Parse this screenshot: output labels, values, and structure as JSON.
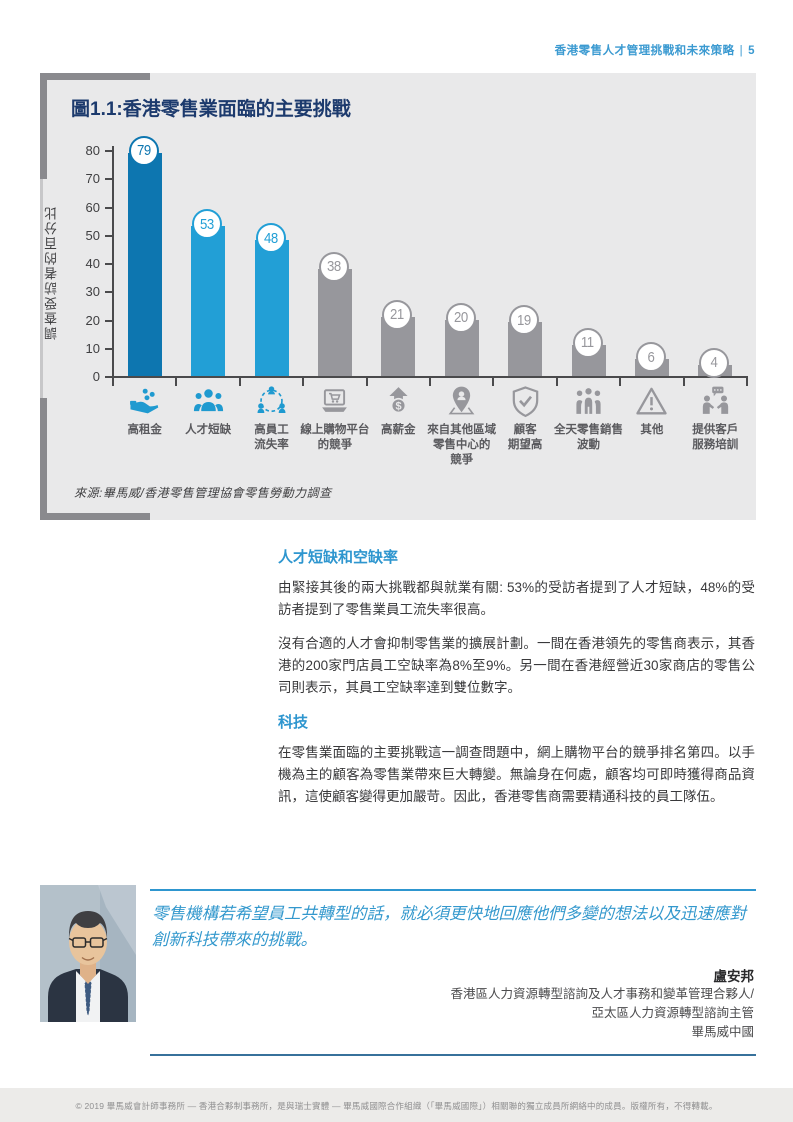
{
  "header": {
    "title": "香港零售人才管理挑戰和未來策略",
    "divider": "|",
    "page_number": "5"
  },
  "chart_data": {
    "type": "bar",
    "title": "圖1.1:香港零售業面臨的主要挑戰",
    "ylabel": "調查受訪者的百分比",
    "xlabel": "",
    "ylim": [
      0,
      80
    ],
    "yticks": [
      0,
      10,
      20,
      30,
      40,
      50,
      60,
      70,
      80
    ],
    "grid": "off",
    "legend": "none",
    "source": "來源:畢馬威/香港零售管理協會零售勞動力調查",
    "categories": [
      "高租金",
      "人才短缺",
      "高員工流失率",
      "線上購物平台的競爭",
      "高薪金",
      "來自其他區域零售中心的競爭",
      "顧客期望高",
      "全天零售銷售波動",
      "其他",
      "提供客戶服務培訓"
    ],
    "values": [
      79,
      53,
      48,
      38,
      21,
      20,
      19,
      11,
      6,
      4
    ],
    "bars": [
      {
        "label_lines": [
          "高租金"
        ],
        "value": 79,
        "color": "#0d76b0",
        "icon": "coins-hand-icon",
        "icon_color": "#1f9ad0"
      },
      {
        "label_lines": [
          "人才短缺"
        ],
        "value": 53,
        "color": "#229fd6",
        "icon": "people-icon",
        "icon_color": "#1f9ad0"
      },
      {
        "label_lines": [
          "高員工",
          "流失率"
        ],
        "value": 48,
        "color": "#229fd6",
        "icon": "turnover-icon",
        "icon_color": "#1f9ad0"
      },
      {
        "label_lines": [
          "線上購物平台",
          "的競爭"
        ],
        "value": 38,
        "color": "#97979c",
        "icon": "laptop-cart-icon",
        "icon_color": "#97979c"
      },
      {
        "label_lines": [
          "高薪金"
        ],
        "value": 21,
        "color": "#97979c",
        "icon": "salary-up-icon",
        "icon_color": "#97979c"
      },
      {
        "label_lines": [
          "來自其他區域",
          "零售中心的",
          "競爭"
        ],
        "value": 20,
        "color": "#97979c",
        "icon": "map-pin-icon",
        "icon_color": "#97979c"
      },
      {
        "label_lines": [
          "顧客",
          "期望高"
        ],
        "value": 19,
        "color": "#97979c",
        "icon": "shield-check-icon",
        "icon_color": "#97979c"
      },
      {
        "label_lines": [
          "全天零售銷售",
          "波動"
        ],
        "value": 11,
        "color": "#97979c",
        "icon": "people-group-icon",
        "icon_color": "#97979c"
      },
      {
        "label_lines": [
          "其他"
        ],
        "value": 6,
        "color": "#97979c",
        "icon": "warning-icon",
        "icon_color": "#97979c"
      },
      {
        "label_lines": [
          "提供客戶",
          "服務培訓"
        ],
        "value": 4,
        "color": "#97979c",
        "icon": "training-icon",
        "icon_color": "#97979c"
      }
    ]
  },
  "sections": [
    {
      "heading": "人才短缺和空缺率",
      "paragraphs": [
        "由緊接其後的兩大挑戰都與就業有關: 53%的受訪者提到了人才短缺，48%的受訪者提到了零售業員工流失率很高。",
        "沒有合適的人才會抑制零售業的擴展計劃。一間在香港領先的零售商表示，其香港的200家門店員工空缺率為8%至9%。另一間在香港經營近30家商店的零售公司則表示，其員工空缺率達到雙位數字。"
      ]
    },
    {
      "heading": "科技",
      "paragraphs": [
        "在零售業面臨的主要挑戰這一調查問題中，網上購物平台的競爭排名第四。以手機為主的顧客為零售業帶來巨大轉變。無論身在何處，顧客均可即時獲得商品資訊，這使顧客變得更加嚴苛。因此，香港零售商需要精通科技的員工隊伍。"
      ]
    }
  ],
  "quote": {
    "text": "零售機構若希望員工共轉型的話，就必須更快地回應他們多變的想法以及迅速應對創新科技帶來的挑戰。",
    "name": "盧安邦",
    "roles": [
      "香港區人力資源轉型諮詢及人才事務和變革管理合夥人/",
      "亞太區人力資源轉型諮詢主管",
      "畢馬威中國"
    ]
  },
  "footer": "© 2019 畢馬威會計師事務所 — 香港合夥制事務所，是與瑞士實體 — 畢馬威國際合作組織（「畢馬威國際」）相關聯的獨立成員所網絡中的成員。版權所有，不得轉載。",
  "colors": {
    "accent_blue": "#2e96cf",
    "title_navy": "#1c3a6d",
    "bar_dark_blue": "#0d76b0",
    "bar_light_blue": "#229fd6",
    "bar_gray": "#97979c",
    "panel_bg": "#e9e9ea",
    "header_blue": "#3b9ad1"
  }
}
